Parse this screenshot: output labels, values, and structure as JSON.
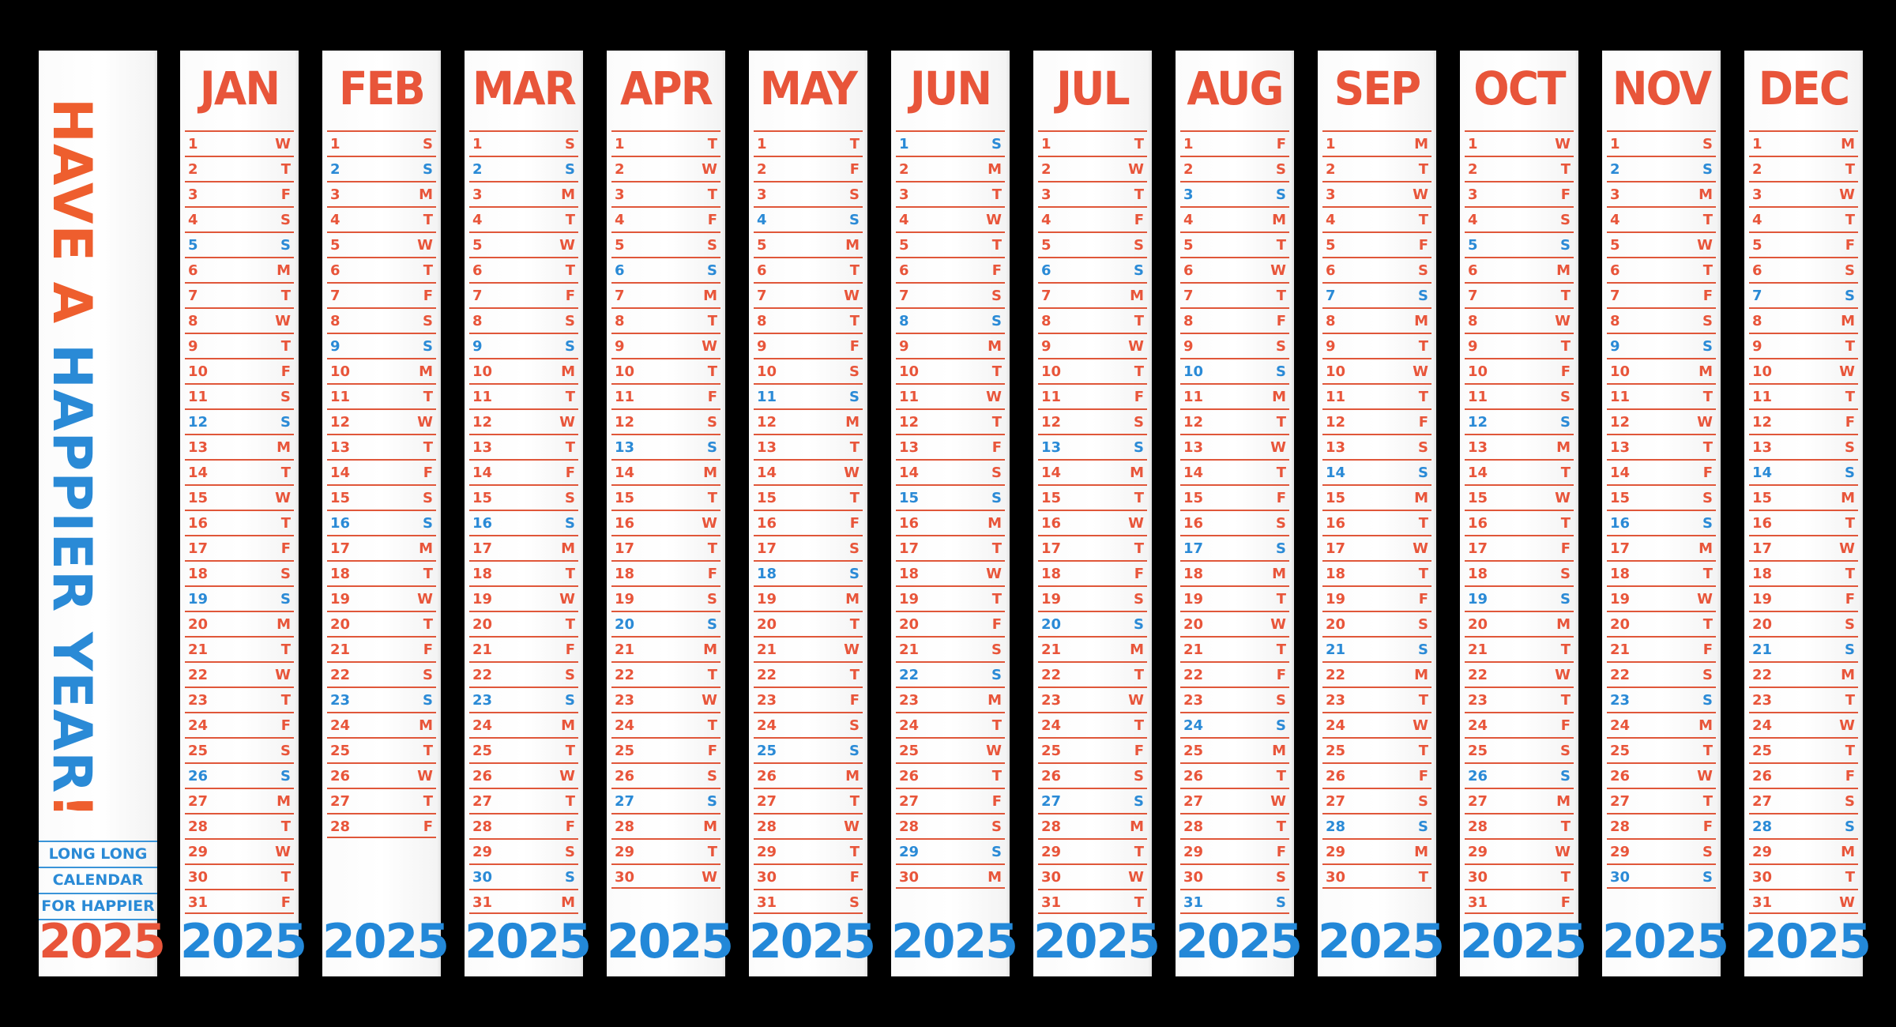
{
  "title": {
    "line_red_1": "HAVE A ",
    "line_blue": "HAPPIER YEAR",
    "line_red_2": "!",
    "subtitle": [
      "LONG LONG",
      "CALENDAR",
      "FOR HAPPIER"
    ],
    "year": "2025"
  },
  "colors": {
    "red": "#e8553a",
    "blue": "#2a8ad6"
  },
  "year_label": "2025",
  "months": [
    {
      "name": "JAN",
      "days": 31,
      "start": 3
    },
    {
      "name": "FEB",
      "days": 28,
      "start": 6
    },
    {
      "name": "MAR",
      "days": 31,
      "start": 6
    },
    {
      "name": "APR",
      "days": 30,
      "start": 2
    },
    {
      "name": "MAY",
      "days": 31,
      "start": 4
    },
    {
      "name": "JUN",
      "days": 30,
      "start": 0
    },
    {
      "name": "JUL",
      "days": 31,
      "start": 2
    },
    {
      "name": "AUG",
      "days": 31,
      "start": 5
    },
    {
      "name": "SEP",
      "days": 30,
      "start": 1
    },
    {
      "name": "OCT",
      "days": 31,
      "start": 3
    },
    {
      "name": "NOV",
      "days": 30,
      "start": 6
    },
    {
      "name": "DEC",
      "days": 31,
      "start": 1
    }
  ],
  "weekday_letters": [
    "S",
    "M",
    "T",
    "W",
    "T",
    "F",
    "S"
  ]
}
